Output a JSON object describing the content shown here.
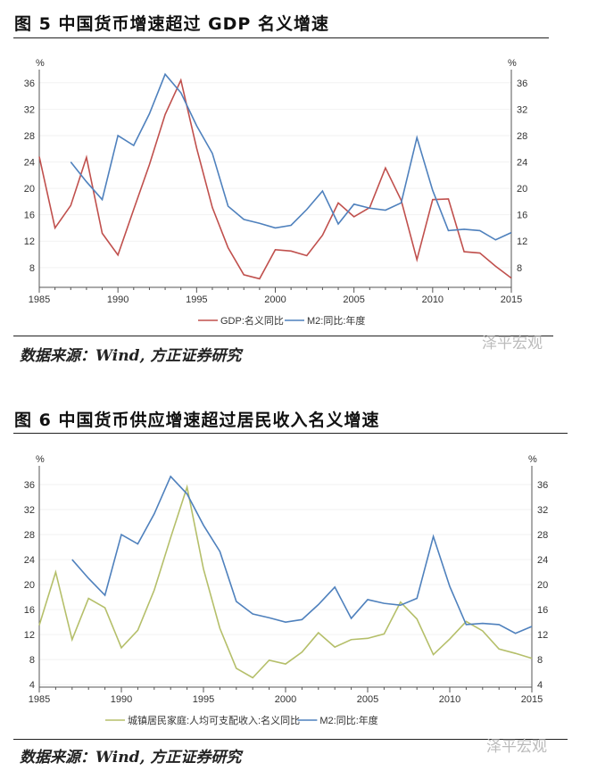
{
  "fig5": {
    "title": "图 5 中国货币增速超过 GDP 名义增速",
    "source": "数据来源：Wind, 方正证券研究",
    "watermark": "泽平宏观"
  },
  "fig6": {
    "title": "图 6 中国货币供应增速超过居民收入名义增速",
    "source": "数据来源：Wind, 方正证券研究",
    "watermark": "泽平宏观"
  },
  "chart_data": [
    {
      "type": "line",
      "title": "图 5 中国货币增速超过 GDP 名义增速",
      "unit": "%",
      "xlim": [
        1985,
        2015
      ],
      "ylim": [
        5,
        38
      ],
      "xticks": [
        1985,
        1990,
        1995,
        2000,
        2005,
        2010,
        2015
      ],
      "yticks": [
        8,
        12,
        16,
        20,
        24,
        28,
        32,
        36
      ],
      "series": [
        {
          "name": "GDP:名义同比",
          "color": "#c0504d",
          "x_start": 1985,
          "values": [
            24.8,
            14,
            17.4,
            24.7,
            13.2,
            9.9,
            16.8,
            23.6,
            31.2,
            36.4,
            26.1,
            17.1,
            11,
            6.9,
            6.3,
            10.7,
            10.5,
            9.8,
            12.9,
            17.8,
            15.7,
            17.1,
            23.1,
            18.2,
            9.2,
            18.3,
            18.4,
            10.4,
            10.2,
            8.2,
            6.4
          ]
        },
        {
          "name": "M2:同比:年度",
          "color": "#4f81bd",
          "x_start": 1987,
          "values": [
            24,
            21,
            18.3,
            28,
            26.5,
            31.3,
            37.3,
            34.5,
            29.5,
            25.3,
            17.3,
            15.3,
            14.7,
            14,
            14.4,
            16.8,
            19.6,
            14.6,
            17.6,
            17,
            16.7,
            17.8,
            27.7,
            19.7,
            13.6,
            13.8,
            13.6,
            12.2,
            13.3
          ]
        }
      ],
      "legend": "bottom"
    },
    {
      "type": "line",
      "title": "图 6 中国货币供应增速超过居民收入名义增速",
      "unit": "%",
      "xlim": [
        1985,
        2015
      ],
      "ylim": [
        3.6,
        39
      ],
      "xticks": [
        1985,
        1990,
        1995,
        2000,
        2005,
        2010,
        2015
      ],
      "yticks": [
        4,
        8,
        12,
        16,
        20,
        24,
        28,
        32,
        36
      ],
      "series": [
        {
          "name": "城镇居民家庭:人均可支配收入:名义同比",
          "color": "#b5bf6a",
          "x_start": 1985,
          "values": [
            13.5,
            22,
            11.2,
            17.8,
            16.3,
            9.9,
            12.7,
            19.1,
            27.5,
            35.6,
            22.5,
            13,
            6.6,
            5.1,
            7.9,
            7.3,
            9.2,
            12.3,
            10,
            11.2,
            11.4,
            12.1,
            17.2,
            14.5,
            8.8,
            11.3,
            14.1,
            12.6,
            9.7,
            9,
            8.2
          ]
        },
        {
          "name": "M2:同比:年度",
          "color": "#4f81bd",
          "x_start": 1987,
          "values": [
            24,
            21,
            18.3,
            28,
            26.5,
            31.3,
            37.3,
            34.5,
            29.5,
            25.3,
            17.3,
            15.3,
            14.7,
            14,
            14.4,
            16.8,
            19.6,
            14.6,
            17.6,
            17,
            16.7,
            17.8,
            27.7,
            19.7,
            13.6,
            13.8,
            13.6,
            12.2,
            13.3
          ]
        }
      ],
      "legend": "bottom"
    }
  ]
}
